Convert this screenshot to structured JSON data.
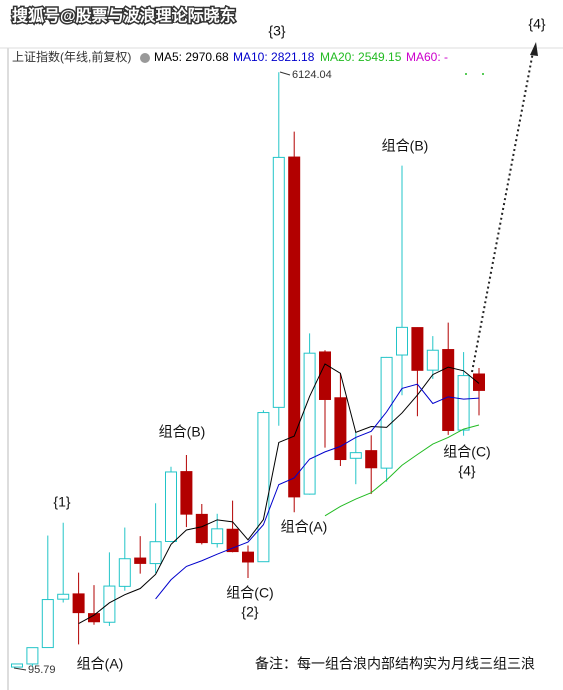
{
  "chart_data": {
    "type": "candlestick",
    "title": "搜狐号@股票与波浪理论际晓东",
    "subtitle": "上证指数(年线,前复权)",
    "categories": [
      null,
      null,
      null,
      null,
      null,
      null,
      null,
      null,
      null,
      null,
      null,
      null,
      null,
      null,
      null,
      null,
      null,
      null,
      null,
      null,
      null,
      null,
      null,
      null,
      null,
      null,
      null,
      null,
      null,
      null,
      null
    ],
    "open": [
      96.05,
      127.61,
      293.74,
      784.13,
      837.7,
      637.72,
      550.26,
      914.06,
      1200.95,
      1144.89,
      1368.69,
      2077.08,
      1643.48,
      1347.43,
      1492.72,
      1260.78,
      1163.88,
      2728.19,
      5265.0,
      1849.02,
      3289.75,
      2825.33,
      2212.0,
      2289.51,
      2112.13,
      3258.63,
      3536.59,
      3105.31,
      3314.03,
      2497.88,
      3066.34
    ],
    "high": [
      127.61,
      292.75,
      1429.01,
      1558.95,
      1052.94,
      926.41,
      1258.69,
      1510.18,
      1422.98,
      1756.18,
      2125.72,
      2245.43,
      1748.89,
      1649.6,
      1783.01,
      1328.53,
      2698.9,
      6124.04,
      5522.78,
      3478.01,
      3306.75,
      3067.46,
      2478.38,
      2444.8,
      3239.36,
      5178.19,
      3538.69,
      3450.49,
      3587.03,
      3288.45,
      3127.17
    ],
    "low": [
      95.79,
      104.96,
      292.76,
      750.46,
      325.89,
      524.43,
      512.83,
      870.18,
      1043.02,
      1047.83,
      1361.21,
      1514.86,
      1339.2,
      1307.4,
      1259.43,
      998.23,
      1161.91,
      2541.52,
      1664.93,
      1844.09,
      2319.74,
      2134.02,
      1949.46,
      1849.65,
      1974.38,
      2850.71,
      2638.3,
      3016.53,
      2449.2,
      2440.91,
      2646.8
    ],
    "close": [
      127.61,
      292.75,
      780.39,
      833.8,
      647.87,
      555.29,
      917.02,
      1194.1,
      1146.7,
      1366.58,
      2073.48,
      1645.97,
      1357.65,
      1497.04,
      1266.5,
      1161.06,
      2675.47,
      5261.56,
      1820.81,
      3277.14,
      2808.08,
      2199.42,
      2269.13,
      2115.98,
      3234.68,
      3539.18,
      3103.64,
      3307.17,
      2493.9,
      3050.12,
      2900.0
    ],
    "up_color": "#22c4c8",
    "down_color": "#b20000",
    "ylim": [
      -35,
      6350
    ],
    "series": [
      {
        "name": "MA5",
        "legend_label": "MA5: 2970.68",
        "color": "#000000",
        "values": [
          null,
          null,
          null,
          null,
          536.5,
          622.0,
          746.9,
          829.6,
          892.2,
          1035.9,
          1339.6,
          1485.4,
          1518.1,
          1588.1,
          1568.1,
          1385.6,
          1591.5,
          2372.3,
          2437.1,
          2839.2,
          3168.6,
          3073.4,
          2474.9,
          2534.0,
          2525.5,
          2671.7,
          2852.5,
          3060.1,
          3135.7,
          3098.8,
          2970.68
        ]
      },
      {
        "name": "MA10",
        "legend_label": "MA10: 2821.18",
        "color": "#0000cc",
        "values": [
          null,
          null,
          null,
          null,
          null,
          null,
          null,
          null,
          null,
          786.2,
          980.8,
          1116.1,
          1173.8,
          1240.2,
          1302.0,
          1362.6,
          1538.5,
          1945.2,
          2012.6,
          2203.7,
          2277.1,
          2332.5,
          2423.6,
          2485.5,
          2682.3,
          2920.1,
          2963.0,
          2767.5,
          2834.8,
          2812.1,
          2821.18
        ]
      },
      {
        "name": "MA20",
        "legend_label": "MA20: 2549.15",
        "color": "#22bb22",
        "values": [
          null,
          null,
          null,
          null,
          null,
          null,
          null,
          null,
          null,
          null,
          null,
          null,
          null,
          null,
          null,
          null,
          null,
          null,
          null,
          null,
          1629.0,
          1724.3,
          1798.7,
          1862.8,
          1992.2,
          2141.4,
          2250.7,
          2356.4,
          2423.7,
          2507.9,
          2549.15
        ]
      },
      {
        "name": "MA60",
        "legend_label": "MA60: -",
        "color": "#cc00cc",
        "values": [
          null,
          null,
          null,
          null,
          null,
          null,
          null,
          null,
          null,
          null,
          null,
          null,
          null,
          null,
          null,
          null,
          null,
          null,
          null,
          null,
          null,
          null,
          null,
          null,
          null,
          null,
          null,
          null,
          null,
          null,
          null
        ]
      }
    ],
    "annotations": [
      {
        "text": "{3}"
      },
      {
        "text": "{4}"
      },
      {
        "text": "组合(B)"
      },
      {
        "text": "组合(B)"
      },
      {
        "text": "{1}"
      },
      {
        "text": "组合(A)"
      },
      {
        "text": "组合(C)"
      },
      {
        "text": "{2}"
      },
      {
        "text": "组合(C)"
      },
      {
        "text": "{4}"
      },
      {
        "text": "组合(A)"
      },
      {
        "text": "备注：每一组合浪内部结构实为月线三组三浪"
      }
    ]
  }
}
